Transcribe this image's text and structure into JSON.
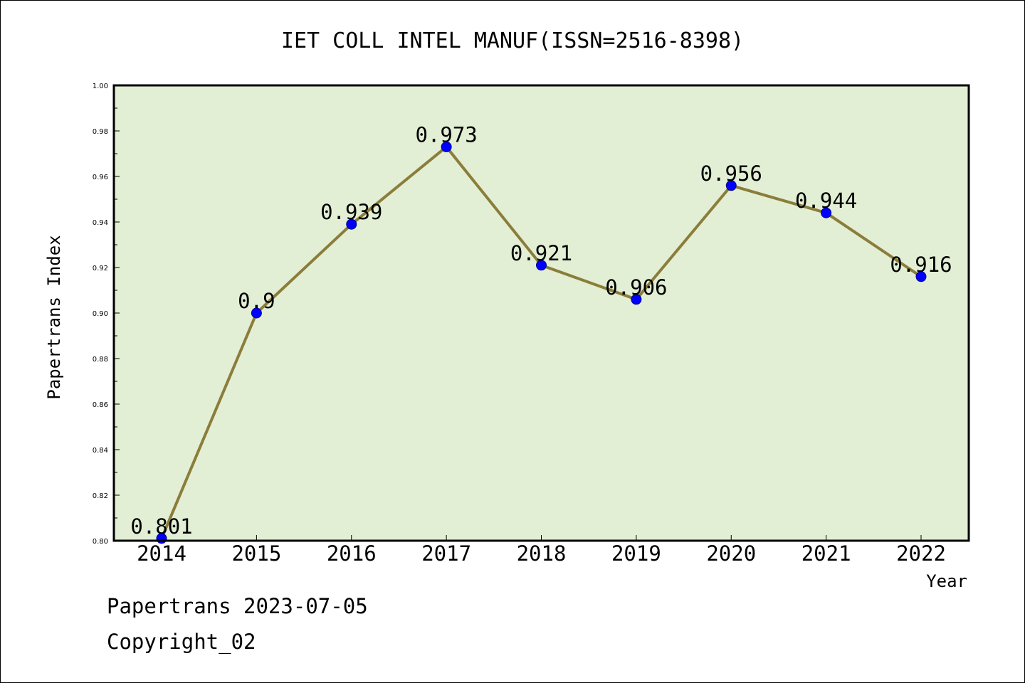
{
  "chart_data": {
    "type": "line",
    "title": "IET COLL INTEL MANUF(ISSN=2516-8398)",
    "xlabel": "Year",
    "ylabel": "Papertrans Index",
    "categories": [
      "2014",
      "2015",
      "2016",
      "2017",
      "2018",
      "2019",
      "2020",
      "2021",
      "2022"
    ],
    "series": [
      {
        "values": [
          0.801,
          0.9,
          0.939,
          0.973,
          0.921,
          0.906,
          0.956,
          0.944,
          0.916
        ],
        "data_labels": [
          "0.801",
          "0.9",
          "0.939",
          "0.973",
          "0.921",
          "0.906",
          "0.956",
          "0.944",
          "0.916"
        ],
        "line_color": "#8b7d3a",
        "marker_color": "#0000ff"
      }
    ],
    "ylim": [
      0.8,
      1.0
    ],
    "yticks": [
      "0.80",
      "0.82",
      "0.84",
      "0.86",
      "0.88",
      "0.90",
      "0.92",
      "0.94",
      "0.96",
      "0.98",
      "1.00"
    ],
    "plot_background": "#e2efd5",
    "grid": false,
    "legend": "none"
  },
  "footer": {
    "line1": "Papertrans 2023-07-05",
    "line2": "Copyright_02"
  }
}
